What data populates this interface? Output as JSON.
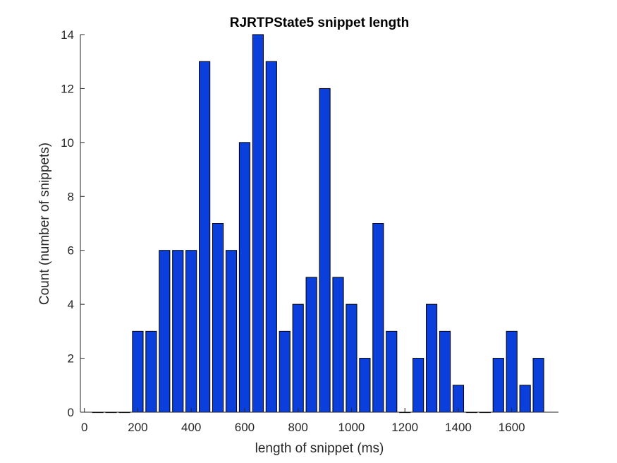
{
  "chart_data": {
    "type": "bar",
    "title": "RJRTPState5 snippet length",
    "xlabel": "length of snippet (ms)",
    "ylabel": "Count (number of snippets)",
    "xlim": [
      -15,
      1775
    ],
    "ylim": [
      0,
      14
    ],
    "xticks": [
      0,
      200,
      400,
      600,
      800,
      1000,
      1200,
      1400,
      1600
    ],
    "yticks": [
      0,
      2,
      4,
      6,
      8,
      10,
      12,
      14
    ],
    "bin_width": 50,
    "x": [
      50,
      100,
      150,
      200,
      250,
      300,
      350,
      400,
      450,
      500,
      550,
      600,
      650,
      700,
      750,
      800,
      850,
      900,
      950,
      1000,
      1050,
      1100,
      1150,
      1200,
      1250,
      1300,
      1350,
      1400,
      1450,
      1500,
      1550,
      1600,
      1650,
      1700
    ],
    "values": [
      0,
      0,
      0,
      3,
      3,
      6,
      6,
      6,
      13,
      7,
      6,
      10,
      14,
      13,
      3,
      4,
      5,
      12,
      5,
      4,
      2,
      7,
      3,
      0,
      2,
      4,
      3,
      1,
      0,
      0,
      2,
      3,
      1,
      2
    ],
    "bar_color": "#0b3fdc",
    "edge_color": "#000000",
    "grid": false,
    "legend": "none"
  }
}
